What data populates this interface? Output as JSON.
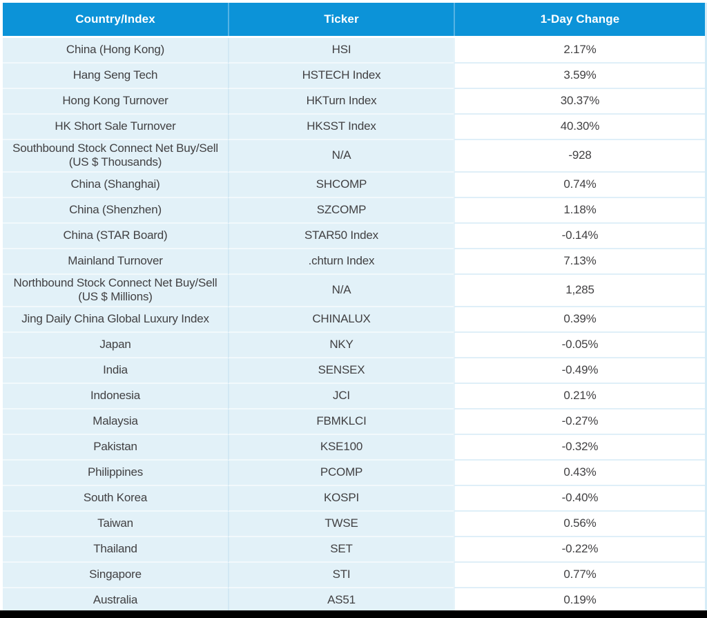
{
  "colors": {
    "header_bg": "#0c93d8",
    "header_text": "#ffffff",
    "row_bg_light_blue": "#e2f1f8",
    "value_column_bg": "#ffffff",
    "body_text": "#414042",
    "bottom_bar": "#000000"
  },
  "chart_data": {
    "type": "table",
    "columns": [
      "Country/Index",
      "Ticker",
      "1-Day Change"
    ],
    "rows": [
      [
        "China (Hong Kong)",
        "HSI",
        "2.17%"
      ],
      [
        "Hang Seng Tech",
        "HSTECH Index",
        "3.59%"
      ],
      [
        "Hong Kong Turnover",
        "HKTurn Index",
        "30.37%"
      ],
      [
        "HK Short Sale Turnover",
        "HKSST Index",
        "40.30%"
      ],
      [
        "Southbound Stock Connect Net Buy/Sell (US $ Thousands)",
        "N/A",
        "-928"
      ],
      [
        "China (Shanghai)",
        "SHCOMP",
        "0.74%"
      ],
      [
        "China (Shenzhen)",
        "SZCOMP",
        "1.18%"
      ],
      [
        "China (STAR Board)",
        "STAR50 Index",
        "-0.14%"
      ],
      [
        "Mainland Turnover",
        ".chturn Index",
        "7.13%"
      ],
      [
        "Northbound Stock Connect Net Buy/Sell (US $ Millions)",
        "N/A",
        "1,285"
      ],
      [
        "Jing Daily China Global Luxury Index",
        "CHINALUX",
        "0.39%"
      ],
      [
        "Japan",
        "NKY",
        "-0.05%"
      ],
      [
        "India",
        "SENSEX",
        "-0.49%"
      ],
      [
        "Indonesia",
        "JCI",
        "0.21%"
      ],
      [
        "Malaysia",
        "FBMKLCI",
        "-0.27%"
      ],
      [
        "Pakistan",
        "KSE100",
        "-0.32%"
      ],
      [
        "Philippines",
        "PCOMP",
        "0.43%"
      ],
      [
        "South Korea",
        "KOSPI",
        "-0.40%"
      ],
      [
        "Taiwan",
        "TWSE",
        "0.56%"
      ],
      [
        "Thailand",
        "SET",
        "-0.22%"
      ],
      [
        "Singapore",
        "STI",
        "0.77%"
      ],
      [
        "Australia",
        "AS51",
        "0.19%"
      ]
    ]
  }
}
